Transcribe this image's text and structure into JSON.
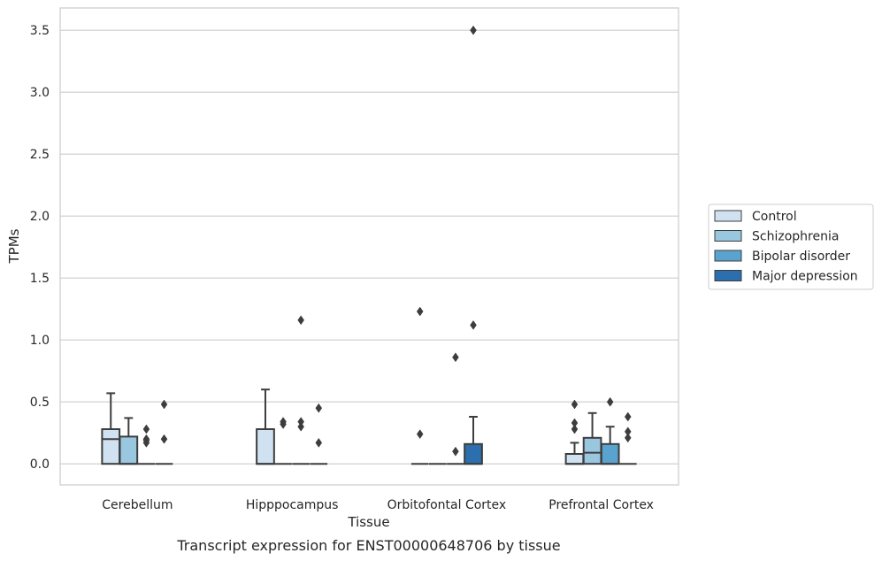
{
  "chart_data": {
    "type": "boxplot",
    "caption": "Transcript expression for ENST00000648706 by tissue",
    "xlabel": "Tissue",
    "ylabel": "TPMs",
    "ylim": [
      -0.17,
      3.68
    ],
    "yticks": [
      0.0,
      0.5,
      1.0,
      1.5,
      2.0,
      2.5,
      3.0,
      3.5
    ],
    "ytick_labels": [
      "0.0",
      "0.5",
      "1.0",
      "1.5",
      "2.0",
      "2.5",
      "3.0",
      "3.5"
    ],
    "grid": "horizontal",
    "legend_position": "right",
    "categories": [
      "Cerebellum",
      "Hipppocampus",
      "Orbitofontal Cortex",
      "Prefrontal Cortex"
    ],
    "series": [
      {
        "name": "Control",
        "color": "#d0e1f1",
        "boxes": [
          {
            "q1": 0.0,
            "median": 0.2,
            "q3": 0.28,
            "whisker_low": 0.0,
            "whisker_high": 0.57,
            "outliers": []
          },
          {
            "q1": 0.0,
            "median": 0.0,
            "q3": 0.28,
            "whisker_low": 0.0,
            "whisker_high": 0.6,
            "outliers": []
          },
          {
            "q1": 0.0,
            "median": 0.0,
            "q3": 0.0,
            "whisker_low": 0.0,
            "whisker_high": 0.0,
            "outliers": [
              0.24,
              1.23
            ]
          },
          {
            "q1": 0.0,
            "median": 0.0,
            "q3": 0.08,
            "whisker_low": 0.0,
            "whisker_high": 0.17,
            "outliers": [
              0.28,
              0.33,
              0.48
            ]
          }
        ]
      },
      {
        "name": "Schizophrenia",
        "color": "#9ac7e0",
        "boxes": [
          {
            "q1": 0.0,
            "median": 0.0,
            "q3": 0.22,
            "whisker_low": 0.0,
            "whisker_high": 0.37,
            "outliers": []
          },
          {
            "q1": 0.0,
            "median": 0.0,
            "q3": 0.0,
            "whisker_low": 0.0,
            "whisker_high": 0.0,
            "outliers": [
              0.32,
              0.34
            ]
          },
          {
            "q1": 0.0,
            "median": 0.0,
            "q3": 0.0,
            "whisker_low": 0.0,
            "whisker_high": 0.0,
            "outliers": []
          },
          {
            "q1": 0.0,
            "median": 0.09,
            "q3": 0.21,
            "whisker_low": 0.0,
            "whisker_high": 0.41,
            "outliers": []
          }
        ]
      },
      {
        "name": "Bipolar disorder",
        "color": "#5ba3cf",
        "boxes": [
          {
            "q1": 0.0,
            "median": 0.0,
            "q3": 0.0,
            "whisker_low": 0.0,
            "whisker_high": 0.0,
            "outliers": [
              0.17,
              0.19,
              0.2,
              0.28
            ]
          },
          {
            "q1": 0.0,
            "median": 0.0,
            "q3": 0.0,
            "whisker_low": 0.0,
            "whisker_high": 0.0,
            "outliers": [
              0.3,
              0.34,
              1.16
            ]
          },
          {
            "q1": 0.0,
            "median": 0.0,
            "q3": 0.0,
            "whisker_low": 0.0,
            "whisker_high": 0.0,
            "outliers": [
              0.1,
              0.86
            ]
          },
          {
            "q1": 0.0,
            "median": 0.0,
            "q3": 0.16,
            "whisker_low": 0.0,
            "whisker_high": 0.3,
            "outliers": [
              0.5
            ]
          }
        ]
      },
      {
        "name": "Major depression",
        "color": "#2b6faf",
        "boxes": [
          {
            "q1": 0.0,
            "median": 0.0,
            "q3": 0.0,
            "whisker_low": 0.0,
            "whisker_high": 0.0,
            "outliers": [
              0.2,
              0.48
            ]
          },
          {
            "q1": 0.0,
            "median": 0.0,
            "q3": 0.0,
            "whisker_low": 0.0,
            "whisker_high": 0.0,
            "outliers": [
              0.17,
              0.45
            ]
          },
          {
            "q1": 0.0,
            "median": 0.0,
            "q3": 0.16,
            "whisker_low": 0.0,
            "whisker_high": 0.38,
            "outliers": [
              1.12,
              3.5
            ]
          },
          {
            "q1": 0.0,
            "median": 0.0,
            "q3": 0.0,
            "whisker_low": 0.0,
            "whisker_high": 0.0,
            "outliers": [
              0.21,
              0.26,
              0.38
            ]
          }
        ]
      }
    ]
  }
}
